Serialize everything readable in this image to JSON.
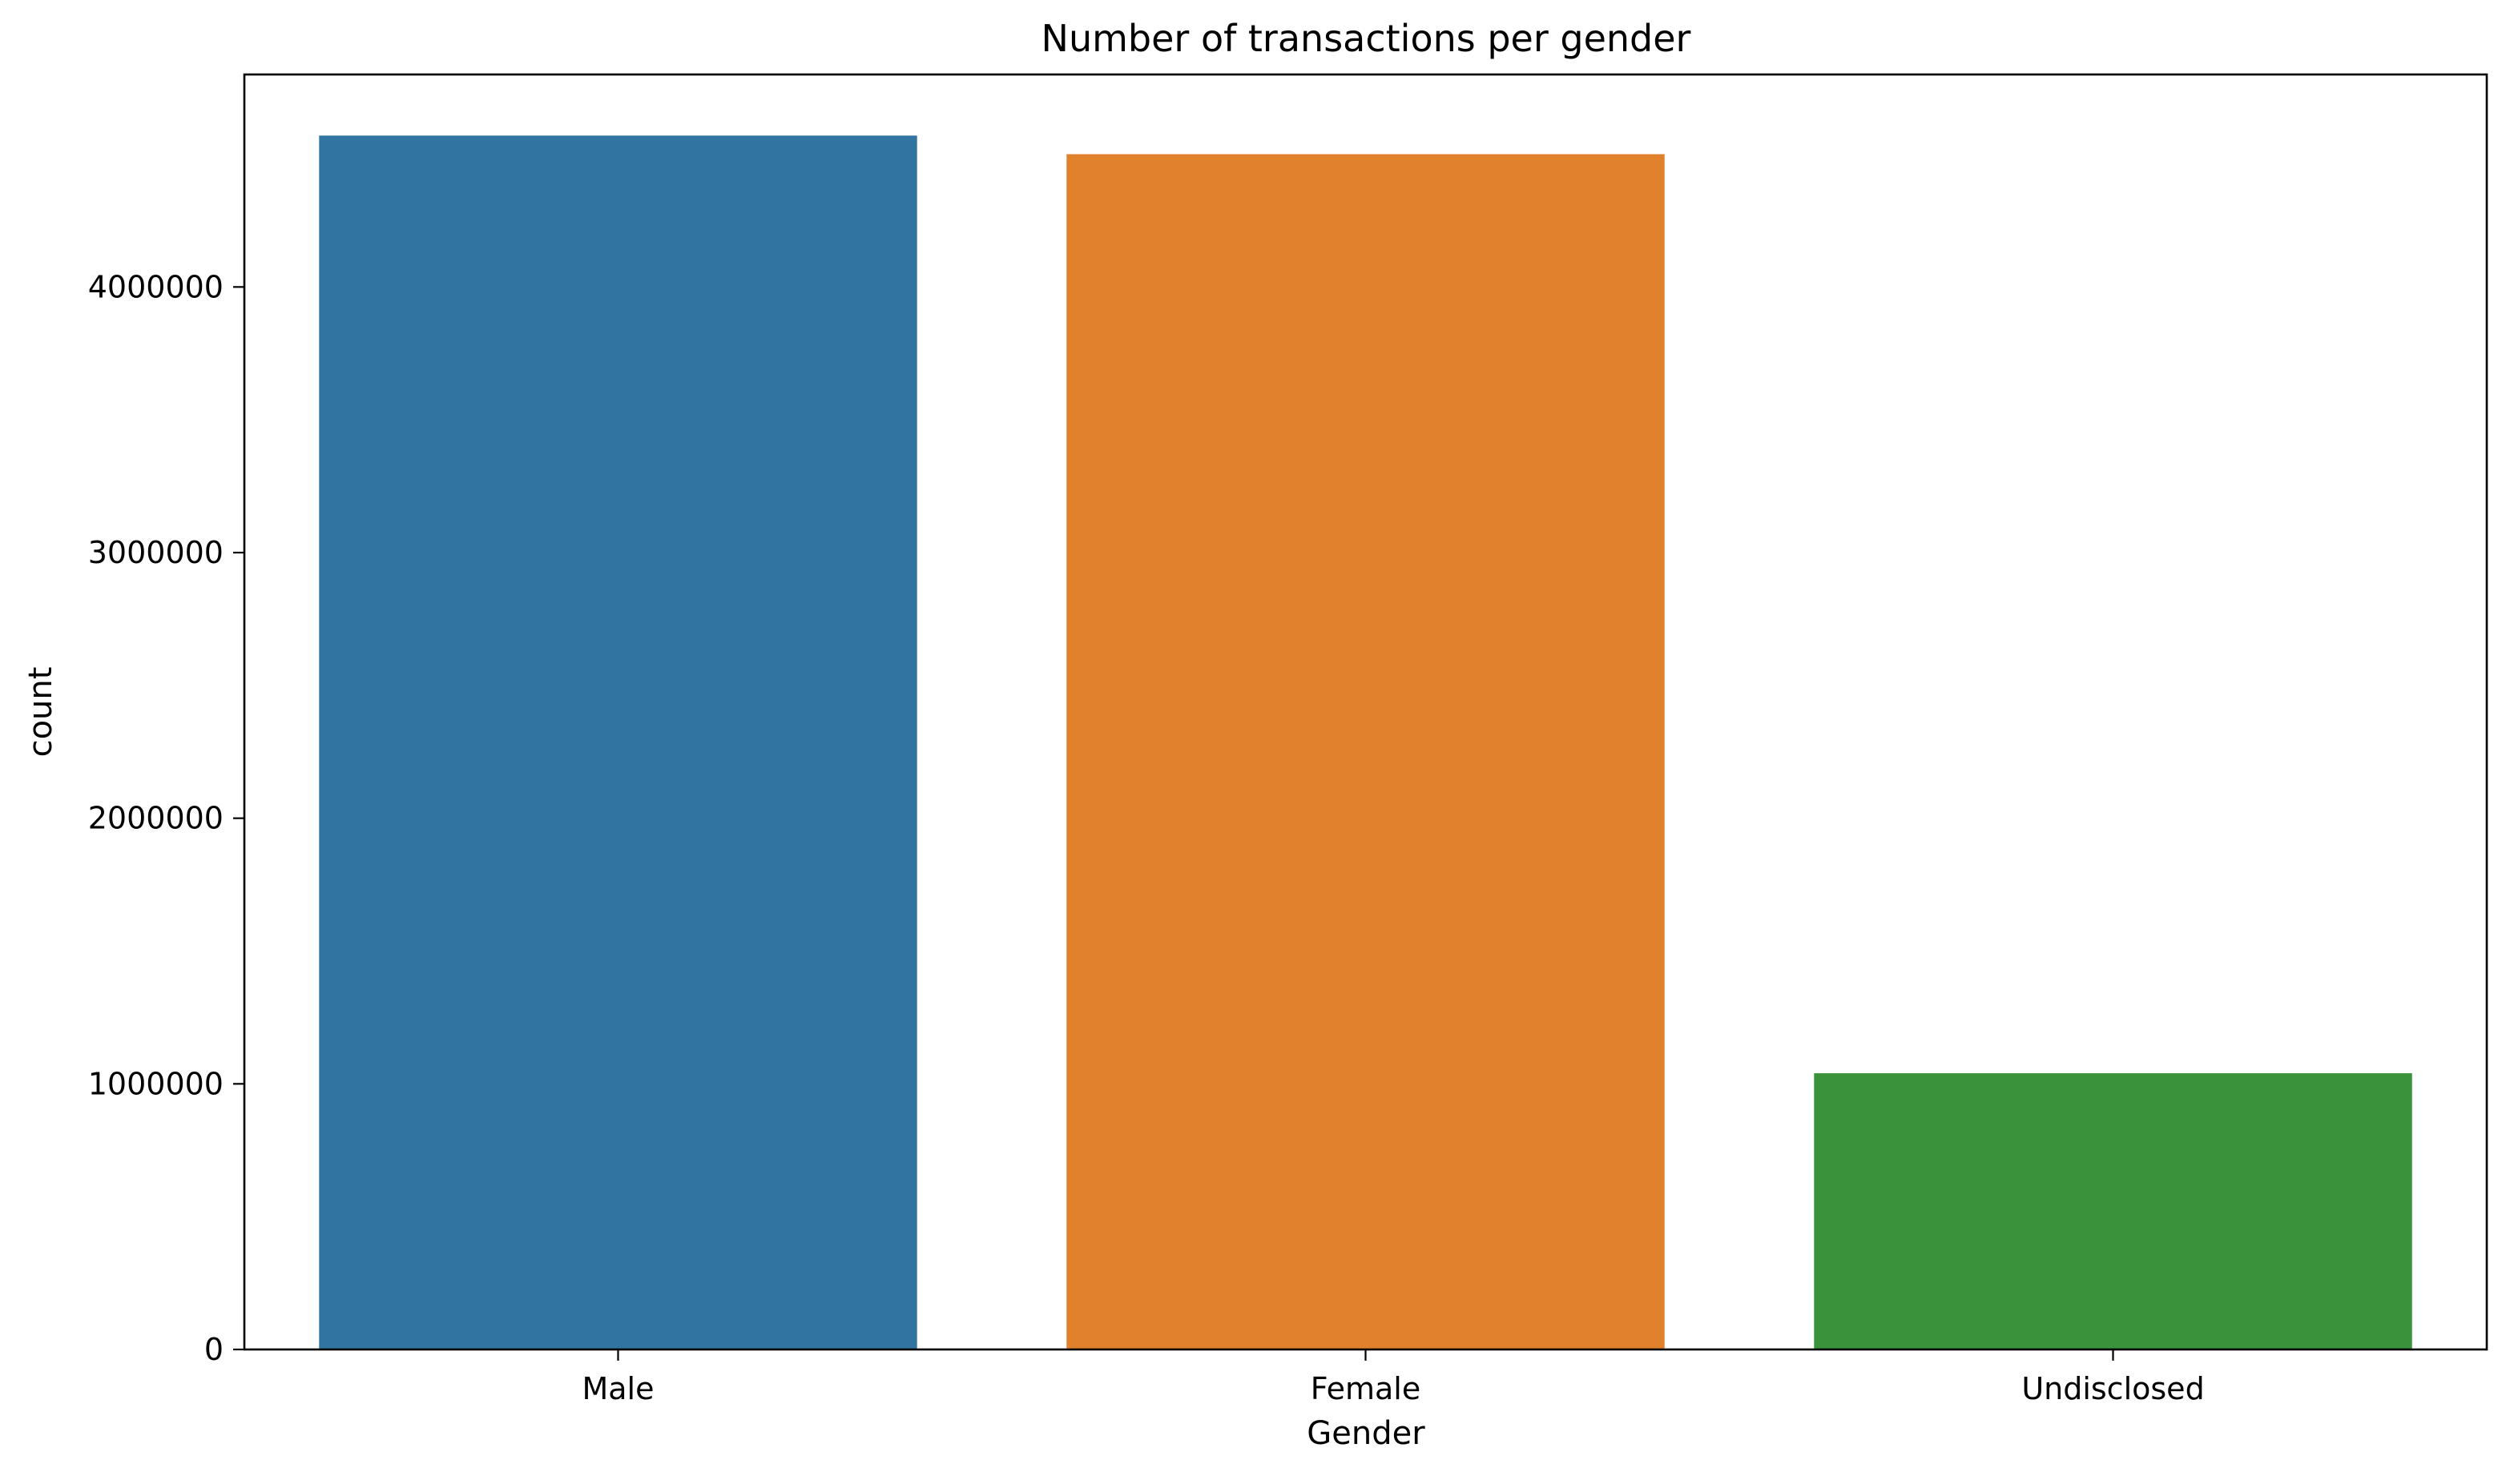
{
  "chart_data": {
    "type": "bar",
    "title": "Number of transactions per gender",
    "xlabel": "Gender",
    "ylabel": "count",
    "categories": [
      "Male",
      "Female",
      "Undisclosed"
    ],
    "values": [
      4570000,
      4500000,
      1040000
    ],
    "colors": [
      "#3274a1",
      "#e1812c",
      "#3a923a"
    ],
    "ylim": [
      0,
      4800000
    ],
    "yticks": [
      0,
      1000000,
      2000000,
      3000000,
      4000000
    ],
    "ytick_labels": [
      "0",
      "1000000",
      "2000000",
      "3000000",
      "4000000"
    ],
    "grid": false,
    "legend": "none"
  }
}
